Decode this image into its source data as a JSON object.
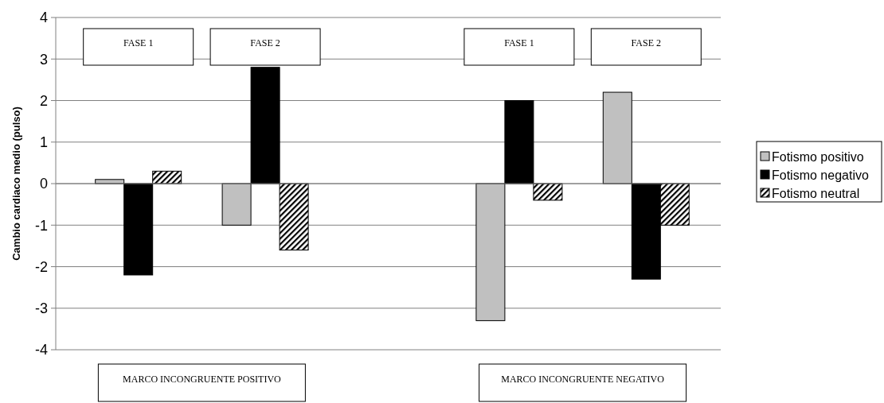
{
  "chart_data": {
    "type": "bar",
    "ylabel": "Cambio cardiaco medio (pulso)",
    "categories": [
      "FASE 1",
      "FASE 2",
      null,
      "FASE 1",
      "FASE 2"
    ],
    "series": [
      {
        "name": "Fotismo positivo",
        "color": "#c0c0c0",
        "values": [
          0.1,
          -1.0,
          null,
          -3.3,
          2.2
        ]
      },
      {
        "name": "Fotismo negativo",
        "color": "#000000",
        "values": [
          -2.2,
          2.8,
          null,
          2.0,
          -2.3
        ]
      },
      {
        "name": "Fotismo neutral",
        "color": "#000000",
        "values": [
          0.3,
          -1.6,
          null,
          -0.4,
          -1.0
        ]
      }
    ],
    "ylim": [
      -4,
      4
    ],
    "yticks": [
      -4,
      -3,
      -2,
      -1,
      0,
      1,
      2,
      3,
      4
    ],
    "grid": "y",
    "legend": "right",
    "annotations": [
      "MARCO INCONGRUENTE POSITIVO",
      "MARCO INCONGRUENTE NEGATIVO"
    ]
  }
}
